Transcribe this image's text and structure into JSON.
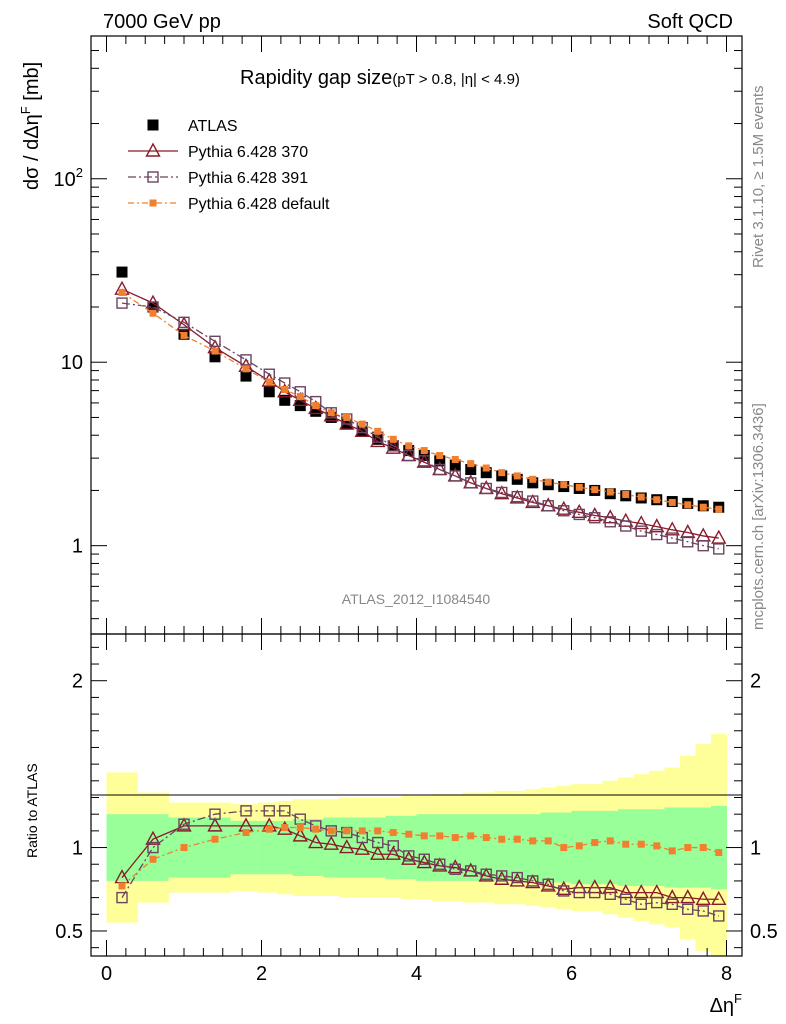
{
  "header": {
    "left": "7000 GeV pp",
    "right": "Soft QCD"
  },
  "side_text": {
    "rivet": "Rivet 3.1.10, ≥ 1.5M events",
    "mcplots": "mcplots.cern.ch [arXiv:1306.3436]"
  },
  "chart_data": {
    "type": "scatter",
    "title_main": "Rapidity gap size",
    "title_sub": "(pT > 0.8, |η| < 4.9)",
    "watermark": "ATLAS_2012_I1084540",
    "xlabel": "ΔηF",
    "xlabel_main": "Δη",
    "xlabel_sup": "F",
    "ylabel": "dσ / dΔηF [mb]",
    "ylabel_main": "dσ / dΔη",
    "ylabel_sup": "F",
    "ylabel_unit": " [mb]",
    "ratio_ylabel": "Ratio to ATLAS",
    "xlim": [
      -0.2,
      8.2
    ],
    "ylim": [
      0.33,
      600
    ],
    "yscale": "log",
    "ratio_ylim": [
      0.35,
      2.28
    ],
    "x_ticks": [
      "0",
      "2",
      "4",
      "6",
      "8"
    ],
    "y_ticks": [
      "1",
      "10",
      "10^2"
    ],
    "y_ticks_main": [
      "1",
      "10",
      "10"
    ],
    "y_ticks_sup": [
      "",
      "",
      "2"
    ],
    "ratio_ticks": [
      "0.5",
      "1",
      "2"
    ],
    "x": [
      0.2,
      0.6,
      1.0,
      1.4,
      1.8,
      2.1,
      2.3,
      2.5,
      2.7,
      2.9,
      3.1,
      3.3,
      3.5,
      3.7,
      3.9,
      4.1,
      4.3,
      4.5,
      4.7,
      4.9,
      5.1,
      5.3,
      5.5,
      5.7,
      5.9,
      6.1,
      6.3,
      6.5,
      6.7,
      6.9,
      7.1,
      7.3,
      7.5,
      7.7,
      7.9
    ],
    "series": [
      {
        "name": "ATLAS",
        "color": "#000000",
        "values": [
          31,
          20,
          14.2,
          10.7,
          8.4,
          6.9,
          6.2,
          5.8,
          5.4,
          5.0,
          4.6,
          4.2,
          3.8,
          3.5,
          3.3,
          3.1,
          2.9,
          2.75,
          2.6,
          2.5,
          2.4,
          2.3,
          2.2,
          2.15,
          2.1,
          2.05,
          2.0,
          1.92,
          1.87,
          1.82,
          1.78,
          1.74,
          1.7,
          1.65,
          1.62
        ]
      },
      {
        "name": "Pythia 6.428 370",
        "color": "#8b1a2b",
        "values": [
          25,
          21,
          16,
          12,
          9.5,
          7.9,
          6.9,
          6.2,
          5.6,
          5.1,
          4.6,
          4.2,
          3.7,
          3.4,
          3.1,
          2.85,
          2.6,
          2.4,
          2.2,
          2.05,
          1.92,
          1.82,
          1.72,
          1.65,
          1.58,
          1.52,
          1.46,
          1.42,
          1.36,
          1.32,
          1.27,
          1.22,
          1.18,
          1.13,
          1.1
        ]
      },
      {
        "name": "Pythia 6.428 391",
        "color": "#6b4460",
        "values": [
          21,
          20,
          16.5,
          13,
          10.3,
          8.6,
          7.7,
          6.9,
          6.1,
          5.3,
          4.9,
          4.4,
          3.9,
          3.5,
          3.1,
          2.9,
          2.6,
          2.4,
          2.2,
          2.05,
          1.95,
          1.85,
          1.75,
          1.65,
          1.55,
          1.48,
          1.42,
          1.35,
          1.28,
          1.2,
          1.15,
          1.1,
          1.05,
          1.0,
          0.96
        ]
      },
      {
        "name": "Pythia 6.428 default",
        "color": "#f08030",
        "values": [
          24,
          18.5,
          14,
          11.5,
          9.2,
          7.8,
          7.1,
          6.5,
          5.8,
          5.3,
          5.0,
          4.6,
          4.2,
          3.8,
          3.5,
          3.3,
          3.1,
          2.95,
          2.8,
          2.65,
          2.5,
          2.4,
          2.3,
          2.22,
          2.15,
          2.08,
          2.02,
          1.96,
          1.9,
          1.84,
          1.78,
          1.72,
          1.67,
          1.62,
          1.58
        ]
      }
    ],
    "ratio_series": [
      {
        "name": "Pythia 6.428 370",
        "values": [
          0.82,
          1.05,
          1.13,
          1.13,
          1.13,
          1.13,
          1.11,
          1.07,
          1.03,
          1.02,
          1.0,
          0.99,
          0.96,
          0.96,
          0.93,
          0.91,
          0.89,
          0.88,
          0.86,
          0.83,
          0.81,
          0.8,
          0.79,
          0.77,
          0.75,
          0.76,
          0.76,
          0.76,
          0.73,
          0.73,
          0.73,
          0.7,
          0.7,
          0.69,
          0.69
        ]
      },
      {
        "name": "Pythia 6.428 391",
        "values": [
          0.7,
          1.0,
          1.14,
          1.2,
          1.22,
          1.22,
          1.22,
          1.17,
          1.13,
          1.1,
          1.09,
          1.06,
          1.03,
          1.01,
          0.95,
          0.93,
          0.9,
          0.87,
          0.86,
          0.84,
          0.83,
          0.82,
          0.8,
          0.78,
          0.74,
          0.73,
          0.73,
          0.72,
          0.69,
          0.66,
          0.67,
          0.66,
          0.63,
          0.62,
          0.59
        ]
      },
      {
        "name": "Pythia 6.428 default",
        "values": [
          0.77,
          0.93,
          1.0,
          1.05,
          1.09,
          1.11,
          1.12,
          1.12,
          1.11,
          1.1,
          1.1,
          1.1,
          1.1,
          1.09,
          1.08,
          1.07,
          1.07,
          1.06,
          1.07,
          1.06,
          1.05,
          1.05,
          1.04,
          1.04,
          1.0,
          1.01,
          1.03,
          1.04,
          1.02,
          1.02,
          1.01,
          0.98,
          1.0,
          1.0,
          0.97
        ]
      }
    ],
    "ratio_bands": {
      "green_half_width": [
        0.2,
        0.2,
        0.18,
        0.18,
        0.16,
        0.16,
        0.16,
        0.17,
        0.17,
        0.18,
        0.18,
        0.18,
        0.18,
        0.19,
        0.19,
        0.2,
        0.2,
        0.2,
        0.2,
        0.2,
        0.2,
        0.2,
        0.2,
        0.21,
        0.21,
        0.22,
        0.22,
        0.22,
        0.23,
        0.23,
        0.23,
        0.24,
        0.24,
        0.24,
        0.25
      ],
      "yellow_half_width": [
        0.45,
        0.33,
        0.27,
        0.27,
        0.26,
        0.27,
        0.28,
        0.29,
        0.29,
        0.29,
        0.3,
        0.3,
        0.3,
        0.3,
        0.31,
        0.31,
        0.32,
        0.32,
        0.33,
        0.33,
        0.34,
        0.34,
        0.35,
        0.36,
        0.37,
        0.38,
        0.38,
        0.4,
        0.42,
        0.44,
        0.46,
        0.48,
        0.55,
        0.62,
        0.68
      ],
      "green_color": "#99ff99",
      "yellow_color": "#ffff99"
    }
  }
}
